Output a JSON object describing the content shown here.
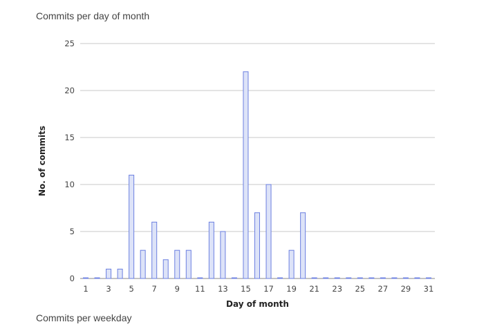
{
  "section_titles": {
    "commits_per_day": "Commits per day of month",
    "commits_per_weekday": "Commits per weekday"
  },
  "chart_data": {
    "type": "bar",
    "title": "Commits per day of month",
    "xlabel": "Day of month",
    "ylabel": "No. of commits",
    "categories": [
      "1",
      "2",
      "3",
      "4",
      "5",
      "6",
      "7",
      "8",
      "9",
      "10",
      "11",
      "12",
      "13",
      "14",
      "15",
      "16",
      "17",
      "18",
      "19",
      "20",
      "21",
      "22",
      "23",
      "24",
      "25",
      "26",
      "27",
      "28",
      "29",
      "30",
      "31"
    ],
    "values": [
      0,
      0,
      1,
      1,
      11,
      3,
      6,
      2,
      3,
      3,
      0,
      6,
      5,
      0,
      22,
      7,
      10,
      0,
      3,
      7,
      0,
      0,
      0,
      0,
      0,
      0,
      0,
      0,
      0,
      0,
      0
    ],
    "x_tick_labels": [
      "1",
      "3",
      "5",
      "7",
      "9",
      "11",
      "13",
      "15",
      "17",
      "19",
      "21",
      "23",
      "25",
      "27",
      "29",
      "31"
    ],
    "y_ticks": [
      0,
      5,
      10,
      15,
      20,
      25
    ],
    "ylim": [
      0,
      25
    ],
    "grid": true,
    "bar_fill": "#dde3f8",
    "bar_stroke": "#6b7fe0",
    "grid_color": "#c8c8c8"
  }
}
